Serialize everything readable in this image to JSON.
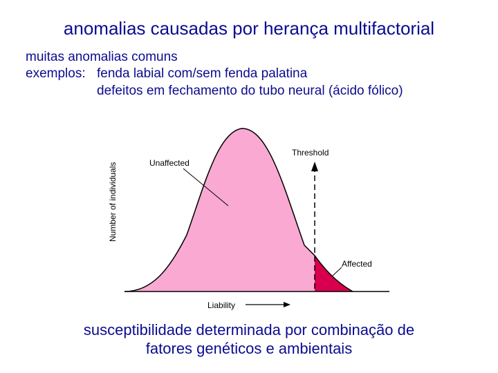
{
  "title": "anomalias causadas por herança multifactorial",
  "intro": {
    "line1": "muitas anomalias comuns",
    "line2_prefix": "exemplos:",
    "example1": "fenda labial com/sem fenda palatina",
    "example2": "defeitos em fechamento do tubo neural (ácido fólico)"
  },
  "diagram": {
    "y_axis_label": "Number of individuals",
    "x_axis_label": "Liability",
    "label_unaffected": "Unaffected",
    "label_threshold": "Threshold",
    "label_affected": "Affected",
    "colors": {
      "unaffected_fill": "#f9a9d2",
      "affected_fill": "#d8004e",
      "text": "#000000"
    }
  },
  "caption": {
    "line1": "susceptibilidade determinada por combinação de",
    "line2": "fatores genéticos e ambientais"
  }
}
